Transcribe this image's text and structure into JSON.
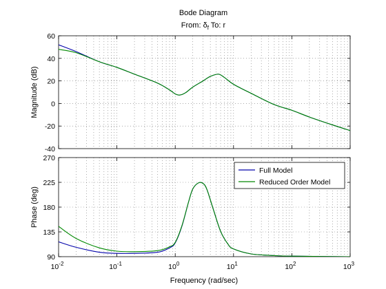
{
  "figure": {
    "title": "Bode Diagram",
    "subtitle": {
      "prefix": "From: δ",
      "subscript": "f",
      "suffix": "  To: r"
    },
    "xlabel": "Frequency  (rad/sec)"
  },
  "colors": {
    "full_model": "#0000aa",
    "reduced_model": "#008800"
  },
  "chart_data": [
    {
      "type": "line",
      "name": "magnitude",
      "ylabel": "Magnitude (dB)",
      "xscale": "log",
      "xlim": [
        0.01,
        1000
      ],
      "ylim": [
        -40,
        60
      ],
      "yticks": [
        -40,
        -20,
        0,
        20,
        40,
        60
      ],
      "xticks": [
        0.01,
        0.1,
        1,
        10,
        100,
        1000
      ],
      "grid": true,
      "series": [
        {
          "name": "Full Model",
          "x": [
            0.01,
            0.02,
            0.05,
            0.1,
            0.2,
            0.5,
            0.8,
            1.0,
            1.2,
            1.5,
            2.0,
            3.0,
            4.0,
            5.5,
            7.0,
            10,
            20,
            50,
            100,
            200,
            500,
            1000
          ],
          "y": [
            52,
            46,
            37,
            32,
            26,
            18,
            12,
            8.5,
            7.5,
            9.5,
            14.5,
            20,
            24,
            26,
            23,
            17,
            9,
            -1,
            -6,
            -12,
            -19,
            -24
          ]
        },
        {
          "name": "Reduced Order Model",
          "x": [
            0.01,
            0.02,
            0.05,
            0.1,
            0.2,
            0.5,
            0.8,
            1.0,
            1.2,
            1.5,
            2.0,
            3.0,
            4.0,
            5.5,
            7.0,
            10,
            20,
            50,
            100,
            200,
            500,
            1000
          ],
          "y": [
            48,
            45,
            37,
            32,
            26,
            18,
            12,
            8.5,
            7.5,
            9.5,
            14.5,
            20,
            24,
            26,
            23,
            17,
            9,
            -1,
            -6,
            -12,
            -19,
            -24
          ]
        }
      ]
    },
    {
      "type": "line",
      "name": "phase",
      "ylabel": "Phase (deg)",
      "xscale": "log",
      "xlim": [
        0.01,
        1000
      ],
      "ylim": [
        90,
        270
      ],
      "yticks": [
        90,
        135,
        180,
        225,
        270
      ],
      "xticks": [
        0.01,
        0.1,
        1,
        10,
        100,
        1000
      ],
      "legend": "top-right",
      "grid": true,
      "series": [
        {
          "name": "Full Model",
          "x": [
            0.01,
            0.02,
            0.05,
            0.1,
            0.2,
            0.5,
            0.8,
            1.0,
            1.3,
            1.7,
            2.0,
            2.5,
            3.0,
            3.5,
            4.5,
            6.0,
            8.0,
            10,
            20,
            50,
            100,
            1000
          ],
          "y": [
            117,
            107,
            98,
            96,
            96,
            98,
            106,
            115,
            145,
            190,
            213,
            224,
            223,
            212,
            176,
            136,
            113,
            104,
            95,
            92,
            91,
            90
          ]
        },
        {
          "name": "Reduced Order Model",
          "x": [
            0.01,
            0.02,
            0.05,
            0.1,
            0.2,
            0.5,
            0.8,
            1.0,
            1.3,
            1.7,
            2.0,
            2.5,
            3.0,
            3.5,
            4.5,
            6.0,
            8.0,
            10,
            20,
            50,
            100,
            1000
          ],
          "y": [
            145,
            123,
            106,
            100,
            99,
            101,
            108,
            116,
            146,
            190,
            213,
            224,
            223,
            212,
            176,
            136,
            113,
            104,
            95,
            92,
            91,
            90
          ]
        }
      ]
    }
  ]
}
